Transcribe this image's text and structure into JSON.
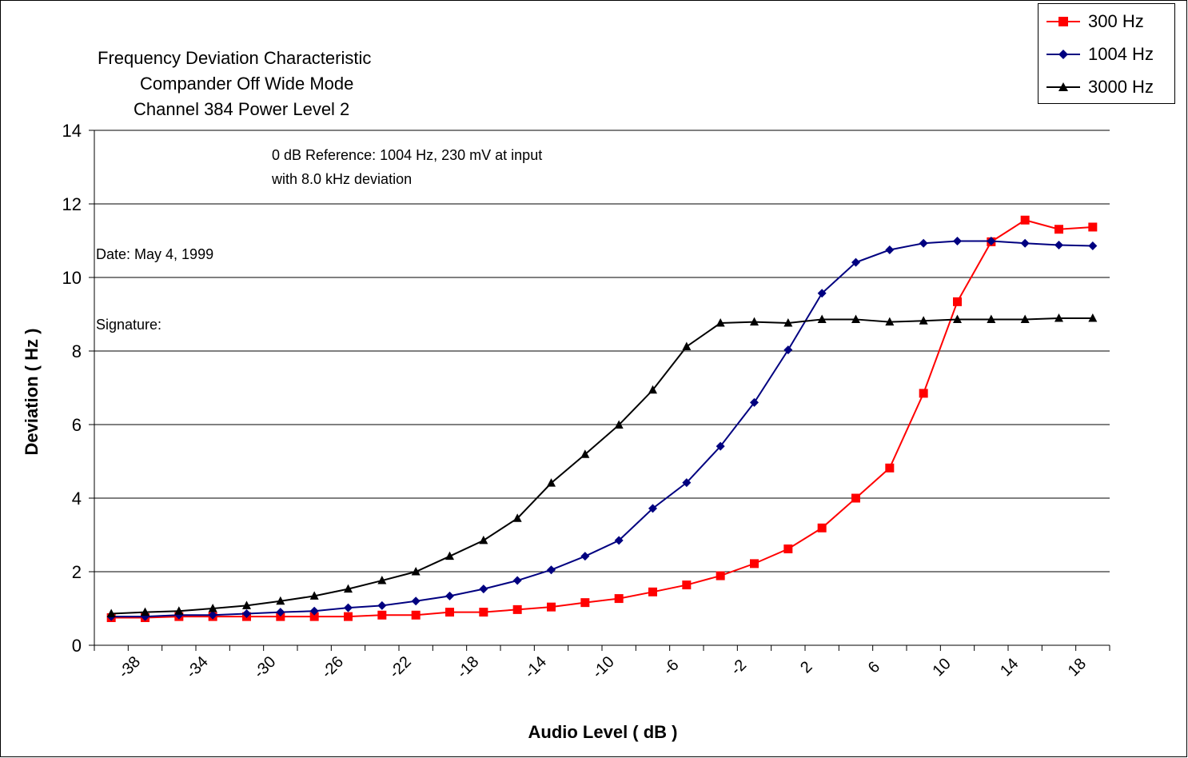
{
  "chart_data": {
    "type": "line",
    "title_lines": [
      "Frequency Deviation Characteristic",
      "Compander Off Wide Mode",
      "Channel 384 Power Level 2"
    ],
    "xlabel": "Audio Level ( dB )",
    "ylabel": "Deviation ( Hz )",
    "x": [
      -39,
      -37,
      -35,
      -33,
      -31,
      -29,
      -27,
      -25,
      -23,
      -21,
      -19,
      -17,
      -15,
      -13,
      -11,
      -9,
      -7,
      -5,
      -3,
      -1,
      1,
      3,
      5,
      7,
      9,
      11,
      13,
      15,
      17,
      19
    ],
    "xlim": [
      -40,
      20
    ],
    "x_tick_labels": [
      "-38",
      "-34",
      "-30",
      "-26",
      "-22",
      "-18",
      "-14",
      "-10",
      "-6",
      "-2",
      "2",
      "6",
      "10",
      "14",
      "18"
    ],
    "x_tick_values": [
      -38,
      -34,
      -30,
      -26,
      -22,
      -18,
      -14,
      -10,
      -6,
      -2,
      2,
      6,
      10,
      14,
      18
    ],
    "ylim": [
      0,
      14
    ],
    "y_ticks": [
      0,
      2,
      4,
      6,
      8,
      10,
      12,
      14
    ],
    "grid": "horizontal",
    "legend_position": "top-right",
    "series": [
      {
        "name": "300 Hz",
        "color": "#ff0000",
        "marker": "square",
        "values": [
          0.75,
          0.75,
          0.78,
          0.78,
          0.78,
          0.78,
          0.78,
          0.78,
          0.82,
          0.82,
          0.9,
          0.9,
          0.97,
          1.04,
          1.16,
          1.27,
          1.45,
          1.64,
          1.89,
          2.22,
          2.62,
          3.19,
          4.0,
          4.82,
          6.85,
          9.34,
          10.97,
          11.56,
          11.31,
          11.37
        ]
      },
      {
        "name": "1004 Hz",
        "color": "#000080",
        "marker": "diamond",
        "values": [
          0.78,
          0.78,
          0.82,
          0.82,
          0.86,
          0.9,
          0.93,
          1.02,
          1.08,
          1.2,
          1.34,
          1.53,
          1.76,
          2.05,
          2.42,
          2.85,
          3.72,
          4.42,
          5.41,
          6.6,
          8.03,
          9.57,
          10.41,
          10.75,
          10.93,
          10.99,
          10.99,
          10.93,
          10.88,
          10.86
        ]
      },
      {
        "name": "3000 Hz",
        "color": "#000000",
        "marker": "triangle",
        "values": [
          0.86,
          0.9,
          0.93,
          1.0,
          1.08,
          1.2,
          1.34,
          1.53,
          1.76,
          2.0,
          2.42,
          2.85,
          3.45,
          4.41,
          5.19,
          5.99,
          6.94,
          8.12,
          8.76,
          8.79,
          8.76,
          8.86,
          8.86,
          8.79,
          8.82,
          8.86,
          8.86,
          8.86,
          8.89,
          8.89
        ]
      }
    ],
    "annotations": {
      "reference_line1": "0 dB Reference:  1004 Hz, 230  mV at input",
      "reference_line2": "with 8.0 kHz deviation",
      "date": "Date:  May 4, 1999",
      "signature": "Signature:"
    }
  }
}
